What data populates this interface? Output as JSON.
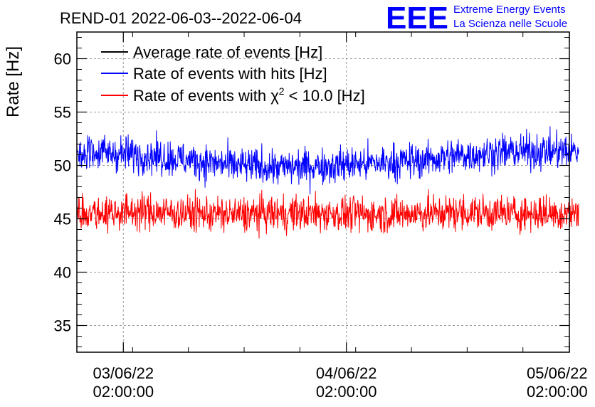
{
  "chart_data": {
    "type": "line",
    "title": "REND-01 2022-06-03--2022-06-04",
    "ylabel": "Rate [Hz]",
    "xlabel": "",
    "ylim": [
      32.5,
      62.5
    ],
    "y_ticks": [
      35,
      40,
      45,
      50,
      55,
      60
    ],
    "x_range": [
      "2022-06-02 21:00:00",
      "2022-06-05 02:00:00"
    ],
    "x_ticks": [
      {
        "value": "2022-06-03 02:00:00",
        "date": "03/06/22",
        "time": "02:00:00"
      },
      {
        "value": "2022-06-04 02:00:00",
        "date": "04/06/22",
        "time": "02:00:00"
      },
      {
        "value": "2022-06-05 02:00:00",
        "date": "05/06/22",
        "time": "02:00:00"
      }
    ],
    "grid": true,
    "legend_position": "top-left",
    "series": [
      {
        "name": "Average rate of events [Hz]",
        "color": "#000000",
        "x": [],
        "y": []
      },
      {
        "name": "Rate of events with hits [Hz]",
        "color": "#0000ff",
        "x": [
          "2022-06-02 23:00",
          "2022-06-03 04:00",
          "2022-06-03 09:00",
          "2022-06-03 14:00",
          "2022-06-03 19:00",
          "2022-06-04 00:00",
          "2022-06-04 05:00",
          "2022-06-04 10:00",
          "2022-06-04 15:00",
          "2022-06-04 20:00"
        ],
        "y": [
          51.2,
          51.0,
          50.5,
          50.0,
          49.8,
          50.0,
          50.2,
          50.5,
          51.0,
          51.3
        ]
      },
      {
        "name": "Rate of events with χ² < 10.0 [Hz]",
        "legend_parts": [
          "Rate of events with χ",
          "2",
          " < 10.0 [Hz]"
        ],
        "color": "#ff0000",
        "x": [
          "2022-06-02 23:00",
          "2022-06-03 04:00",
          "2022-06-03 09:00",
          "2022-06-03 14:00",
          "2022-06-03 19:00",
          "2022-06-04 00:00",
          "2022-06-04 05:00",
          "2022-06-04 10:00",
          "2022-06-04 15:00",
          "2022-06-04 20:00"
        ],
        "y": [
          45.6,
          45.7,
          45.5,
          45.4,
          45.5,
          45.5,
          45.4,
          45.5,
          45.6,
          45.5
        ]
      }
    ],
    "noise_amplitude_hz": 1.2
  },
  "logo": {
    "mark": "EEE",
    "line1": "Extreme Energy Events",
    "line2": "La Scienza nelle Scuole",
    "color": "#0000ff"
  }
}
